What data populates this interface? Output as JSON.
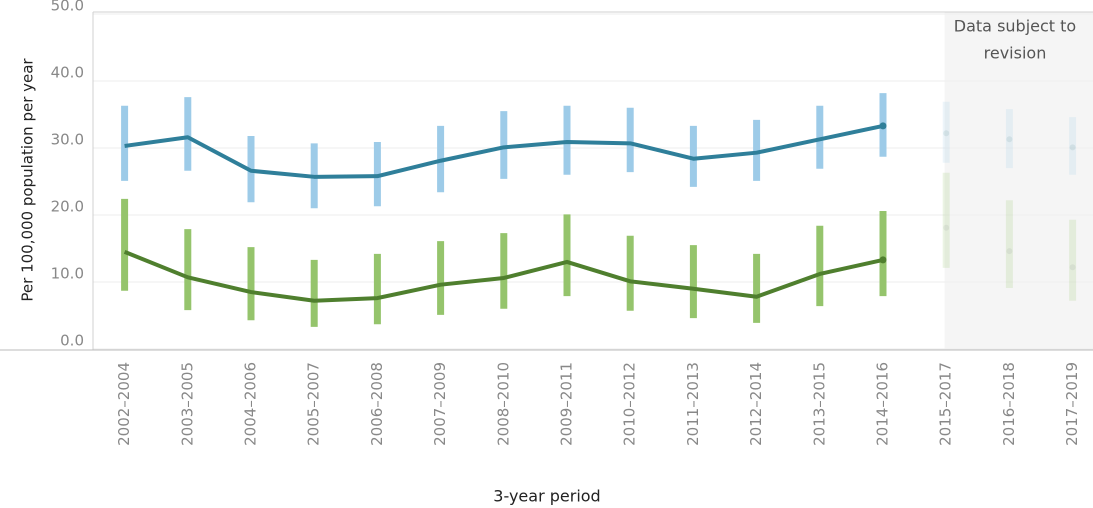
{
  "chart_data": {
    "type": "line_errorbar",
    "y_label": "Per 100,000 population per year",
    "x_label": "3-year period",
    "revision_note": [
      "Data subject to",
      "revision"
    ],
    "revision_start": "2015–2017",
    "categories": [
      "2002–2004",
      "2003–2005",
      "2004–2006",
      "2005–2007",
      "2006–2008",
      "2007–2009",
      "2008–2010",
      "2009–2011",
      "2010–2012",
      "2011–2013",
      "2012–2014",
      "2013–2015",
      "2014–2016",
      "2015–2017",
      "2016–2018",
      "2017–2019"
    ],
    "ylim": [
      0,
      50.3
    ],
    "yticks": [
      {
        "value": 0,
        "label": "0.0"
      },
      {
        "value": 10,
        "label": "10.0"
      },
      {
        "value": 20,
        "label": "20.0"
      },
      {
        "value": 30,
        "label": "30.0"
      },
      {
        "value": 40,
        "label": "40.0"
      },
      {
        "value": 50,
        "label": "50.0"
      }
    ],
    "grid": true,
    "series": [
      {
        "color": "#2f7f9a",
        "bar_color": "#9dcbe8",
        "values": [
          30.3,
          31.6,
          26.6,
          25.7,
          25.8,
          28.1,
          30.1,
          30.9,
          30.7,
          28.4,
          29.3,
          31.3,
          33.3,
          32.2,
          31.3,
          30.1
        ],
        "lower": [
          25.1,
          26.6,
          21.9,
          21.0,
          21.3,
          23.4,
          25.4,
          26.0,
          26.4,
          24.2,
          25.1,
          26.9,
          28.7,
          27.8,
          27.0,
          26.0
        ],
        "upper": [
          36.3,
          37.6,
          31.8,
          30.7,
          30.9,
          33.3,
          35.5,
          36.3,
          36.0,
          33.3,
          34.2,
          36.3,
          38.2,
          36.9,
          35.8,
          34.6
        ]
      },
      {
        "color": "#4f7f2e",
        "bar_color": "#95c46c",
        "values": [
          14.5,
          10.7,
          8.5,
          7.2,
          7.6,
          9.6,
          10.6,
          13.0,
          10.1,
          9.0,
          7.8,
          11.2,
          13.3,
          18.1,
          14.6,
          12.2
        ],
        "lower": [
          8.7,
          5.8,
          4.3,
          3.3,
          3.7,
          5.1,
          6.0,
          7.9,
          5.7,
          4.6,
          3.9,
          6.4,
          7.9,
          12.1,
          9.1,
          7.2
        ],
        "upper": [
          22.4,
          17.9,
          15.2,
          13.3,
          14.2,
          16.1,
          17.3,
          20.1,
          16.9,
          15.5,
          14.2,
          18.4,
          20.6,
          26.3,
          22.2,
          19.3
        ]
      }
    ]
  }
}
